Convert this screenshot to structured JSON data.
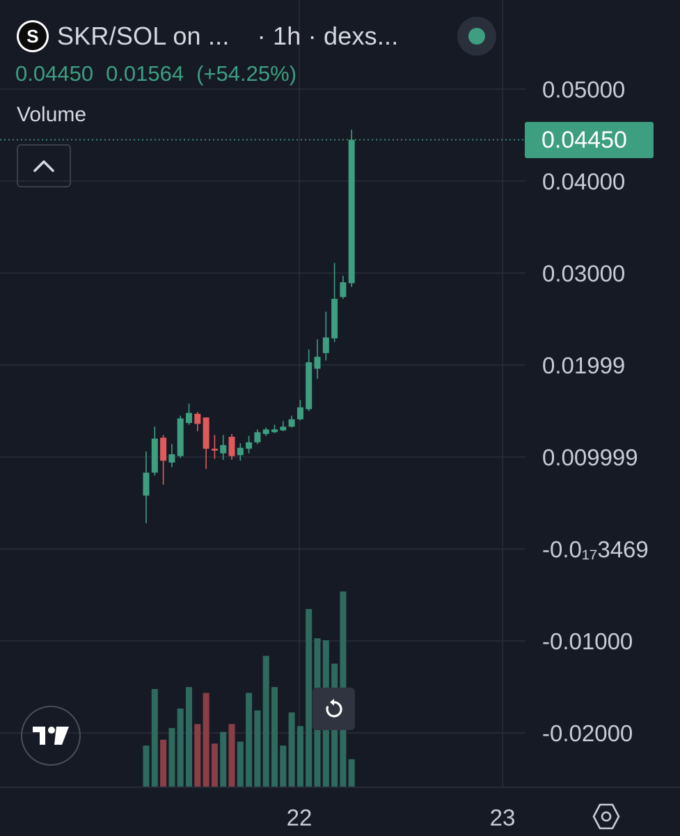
{
  "header": {
    "logo_letter": "S",
    "symbol": "SKR/SOL on ...",
    "interval": "· 1h · dexs..."
  },
  "ohlc": {
    "close": "0.04450",
    "change": "0.01564",
    "change_pct": "(+54.25%)"
  },
  "volume_label": "Volume",
  "price_tag": "0.04450",
  "chart_data": {
    "type": "candlestick",
    "y_axis_labels": [
      "0.05000",
      "0.04000",
      "0.03000",
      "0.01999",
      "0.009999",
      "-0.0₁₇3469",
      "-0.01000",
      "-0.02000"
    ],
    "y_axis_values": [
      0.05,
      0.04,
      0.03,
      0.02,
      0.01,
      0.0,
      -0.01,
      -0.02
    ],
    "x_tick_labels": [
      "22",
      "23"
    ],
    "last_price": 0.0445,
    "colors": {
      "up": "#3e9e80",
      "down": "#e05a5b",
      "vol_up": "#2f6a5e",
      "vol_down": "#8a3f47",
      "grid": "#2a2e39"
    },
    "candles": [
      {
        "o": 0.0058,
        "h": 0.0106,
        "l": 0.0028,
        "c": 0.0083
      },
      {
        "o": 0.0083,
        "h": 0.0133,
        "l": 0.008,
        "c": 0.012
      },
      {
        "o": 0.0121,
        "h": 0.0124,
        "l": 0.007,
        "c": 0.0096
      },
      {
        "o": 0.0094,
        "h": 0.0114,
        "l": 0.0089,
        "c": 0.0103
      },
      {
        "o": 0.0101,
        "h": 0.0145,
        "l": 0.0099,
        "c": 0.0142
      },
      {
        "o": 0.0137,
        "h": 0.0158,
        "l": 0.0135,
        "c": 0.0148
      },
      {
        "o": 0.0147,
        "h": 0.0149,
        "l": 0.0128,
        "c": 0.0136
      },
      {
        "o": 0.0143,
        "h": 0.0143,
        "l": 0.0087,
        "c": 0.0109
      },
      {
        "o": 0.0109,
        "h": 0.0124,
        "l": 0.0098,
        "c": 0.0107
      },
      {
        "o": 0.0104,
        "h": 0.0124,
        "l": 0.0097,
        "c": 0.0113
      },
      {
        "o": 0.0122,
        "h": 0.0125,
        "l": 0.0097,
        "c": 0.0101
      },
      {
        "o": 0.0102,
        "h": 0.0115,
        "l": 0.0096,
        "c": 0.011
      },
      {
        "o": 0.0109,
        "h": 0.0123,
        "l": 0.0104,
        "c": 0.0116
      },
      {
        "o": 0.0116,
        "h": 0.013,
        "l": 0.0114,
        "c": 0.0127
      },
      {
        "o": 0.0125,
        "h": 0.0132,
        "l": 0.0123,
        "c": 0.013
      },
      {
        "o": 0.0127,
        "h": 0.0135,
        "l": 0.0126,
        "c": 0.013
      },
      {
        "o": 0.0129,
        "h": 0.0139,
        "l": 0.0128,
        "c": 0.0133
      },
      {
        "o": 0.0133,
        "h": 0.0145,
        "l": 0.0132,
        "c": 0.0141
      },
      {
        "o": 0.0141,
        "h": 0.0162,
        "l": 0.014,
        "c": 0.0154
      },
      {
        "o": 0.0152,
        "h": 0.0217,
        "l": 0.015,
        "c": 0.0203
      },
      {
        "o": 0.0196,
        "h": 0.0228,
        "l": 0.0185,
        "c": 0.0209
      },
      {
        "o": 0.0213,
        "h": 0.0258,
        "l": 0.0205,
        "c": 0.023
      },
      {
        "o": 0.0229,
        "h": 0.0311,
        "l": 0.0225,
        "c": 0.0272
      },
      {
        "o": 0.0274,
        "h": 0.0297,
        "l": 0.0272,
        "c": 0.029
      },
      {
        "o": 0.0289,
        "h": 0.0456,
        "l": 0.0285,
        "c": 0.0445
      }
    ],
    "volume_fraction_of_max": [
      0.21,
      0.5,
      0.24,
      0.3,
      0.4,
      0.51,
      0.32,
      0.48,
      0.22,
      0.28,
      0.32,
      0.23,
      0.48,
      0.39,
      0.67,
      0.51,
      0.21,
      0.38,
      0.31,
      0.91,
      0.76,
      0.75,
      0.63,
      1.0,
      0.14
    ]
  }
}
